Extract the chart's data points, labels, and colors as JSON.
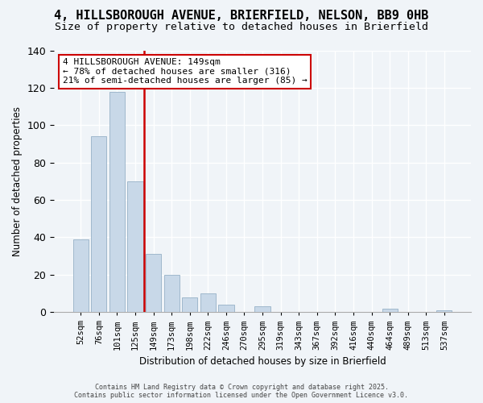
{
  "title": "4, HILLSBOROUGH AVENUE, BRIERFIELD, NELSON, BB9 0HB",
  "subtitle": "Size of property relative to detached houses in Brierfield",
  "xlabel": "Distribution of detached houses by size in Brierfield",
  "ylabel": "Number of detached properties",
  "categories": [
    "52sqm",
    "76sqm",
    "101sqm",
    "125sqm",
    "149sqm",
    "173sqm",
    "198sqm",
    "222sqm",
    "246sqm",
    "270sqm",
    "295sqm",
    "319sqm",
    "343sqm",
    "367sqm",
    "392sqm",
    "416sqm",
    "440sqm",
    "464sqm",
    "489sqm",
    "513sqm",
    "537sqm"
  ],
  "values": [
    39,
    94,
    118,
    70,
    31,
    20,
    8,
    10,
    4,
    0,
    3,
    0,
    0,
    0,
    0,
    0,
    0,
    2,
    0,
    0,
    1
  ],
  "bar_color": "#c8d8e8",
  "bar_edge_color": "#a0b8cc",
  "vline_x_index": 4,
  "vline_color": "#cc0000",
  "ylim": [
    0,
    140
  ],
  "yticks": [
    0,
    20,
    40,
    60,
    80,
    100,
    120,
    140
  ],
  "annotation_line1": "4 HILLSBOROUGH AVENUE: 149sqm",
  "annotation_line2": "← 78% of detached houses are smaller (316)",
  "annotation_line3": "21% of semi-detached houses are larger (85) →",
  "footer_line1": "Contains HM Land Registry data © Crown copyright and database right 2025.",
  "footer_line2": "Contains public sector information licensed under the Open Government Licence v3.0.",
  "background_color": "#f0f4f8",
  "title_fontsize": 11,
  "subtitle_fontsize": 9.5
}
